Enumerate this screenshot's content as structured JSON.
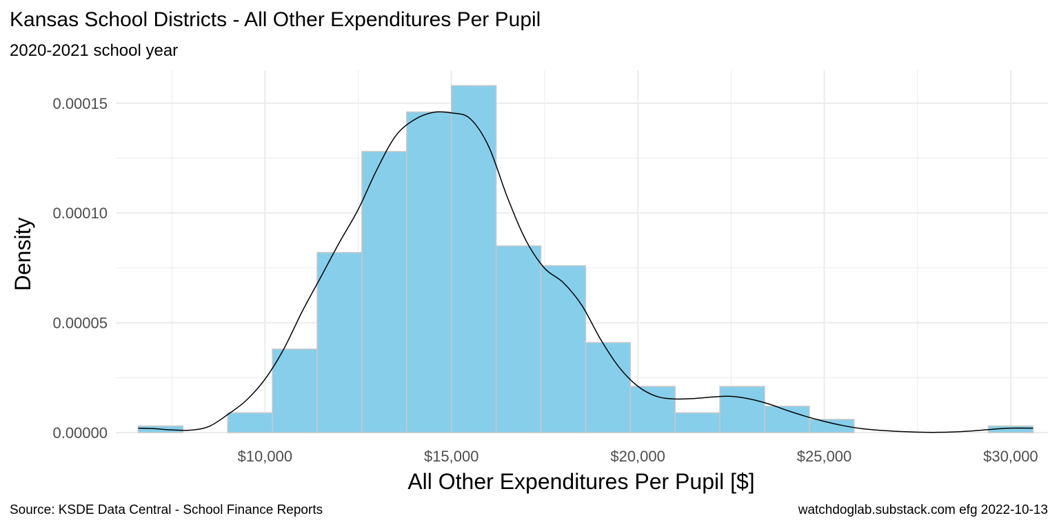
{
  "chart_data": {
    "type": "bar",
    "subtype": "histogram-with-density",
    "title": "Kansas School Districts - All Other Expenditures Per Pupil",
    "subtitle": "2020-2021 school year",
    "xlabel": "All Other Expenditures Per Pupil [$]",
    "ylabel": "Density",
    "caption_left": "Source:  KSDE Data Central - School Finance Reports",
    "caption_right": "watchdoglab.substack.com  efg 2022-10-13",
    "xlim": [
      6000,
      31000
    ],
    "ylim": [
      0,
      0.000165
    ],
    "x_ticks": [
      {
        "value": 10000,
        "label": "$10,000"
      },
      {
        "value": 15000,
        "label": "$15,000"
      },
      {
        "value": 20000,
        "label": "$20,000"
      },
      {
        "value": 25000,
        "label": "$25,000"
      },
      {
        "value": 30000,
        "label": "$30,000"
      }
    ],
    "y_ticks": [
      {
        "value": 0,
        "label": "0.00000"
      },
      {
        "value": 5e-05,
        "label": "0.00005"
      },
      {
        "value": 0.0001,
        "label": "0.00010"
      },
      {
        "value": 0.00015,
        "label": "0.00015"
      }
    ],
    "grid": true,
    "legend": "none",
    "bar_fill": "#87ceeb",
    "bar_outline": "#c8c8c8",
    "grid_color": "#ebebeb",
    "curve_color": "#000000",
    "bins": [
      {
        "x0": 6600,
        "x1": 7800,
        "density": 3e-06
      },
      {
        "x0": 7800,
        "x1": 9000,
        "density": 0
      },
      {
        "x0": 9000,
        "x1": 10200,
        "density": 9e-06
      },
      {
        "x0": 10200,
        "x1": 11400,
        "density": 3.8e-05
      },
      {
        "x0": 11400,
        "x1": 12600,
        "density": 8.2e-05
      },
      {
        "x0": 12600,
        "x1": 13800,
        "density": 0.000128
      },
      {
        "x0": 13800,
        "x1": 15000,
        "density": 0.000146
      },
      {
        "x0": 15000,
        "x1": 16200,
        "density": 0.000158
      },
      {
        "x0": 16200,
        "x1": 17400,
        "density": 8.5e-05
      },
      {
        "x0": 17400,
        "x1": 18600,
        "density": 7.6e-05
      },
      {
        "x0": 18600,
        "x1": 19800,
        "density": 4.1e-05
      },
      {
        "x0": 19800,
        "x1": 21000,
        "density": 2.1e-05
      },
      {
        "x0": 21000,
        "x1": 22200,
        "density": 9e-06
      },
      {
        "x0": 22200,
        "x1": 23400,
        "density": 2.1e-05
      },
      {
        "x0": 23400,
        "x1": 24600,
        "density": 1.2e-05
      },
      {
        "x0": 24600,
        "x1": 25800,
        "density": 6e-06
      },
      {
        "x0": 25800,
        "x1": 27000,
        "density": 0
      },
      {
        "x0": 27000,
        "x1": 28200,
        "density": 0
      },
      {
        "x0": 28200,
        "x1": 29400,
        "density": 0
      },
      {
        "x0": 29400,
        "x1": 30600,
        "density": 3e-06
      }
    ],
    "density_curve": {
      "x": [
        6600,
        7000,
        7500,
        8000,
        8500,
        9000,
        9500,
        10000,
        10500,
        11000,
        11500,
        12000,
        12500,
        13000,
        13500,
        14000,
        14500,
        15000,
        15500,
        16000,
        16500,
        17000,
        17500,
        18000,
        18500,
        19000,
        19500,
        20000,
        20500,
        21000,
        21500,
        22000,
        22500,
        23000,
        23500,
        24000,
        24500,
        25000,
        25500,
        26000,
        26500,
        27000,
        27500,
        28000,
        28500,
        29000,
        29500,
        30000,
        30600
      ],
      "y": [
        2e-06,
        1.8e-06,
        1.2e-06,
        1.1e-06,
        2.8e-06,
        8.2e-06,
        1.47e-05,
        2.43e-05,
        3.79e-05,
        5.52e-05,
        7.09e-05,
        8.67e-05,
        0.0001016,
        0.0001197,
        0.000135,
        0.0001424,
        0.0001458,
        0.0001456,
        0.000143,
        0.0001303,
        0.0001072,
        8.75e-05,
        7.48e-05,
        6.83e-05,
        5.79e-05,
        4.25e-05,
        2.97e-05,
        2.11e-05,
        1.65e-05,
        1.53e-05,
        1.55e-05,
        1.62e-05,
        1.65e-05,
        1.53e-05,
        1.31e-05,
        1.01e-05,
        7.4e-06,
        5.1e-06,
        3.2e-06,
        1.8e-06,
        1e-06,
        5e-07,
        2e-07,
        1e-07,
        3e-07,
        8e-07,
        1.5e-06,
        2e-06,
        2e-06
      ]
    }
  }
}
